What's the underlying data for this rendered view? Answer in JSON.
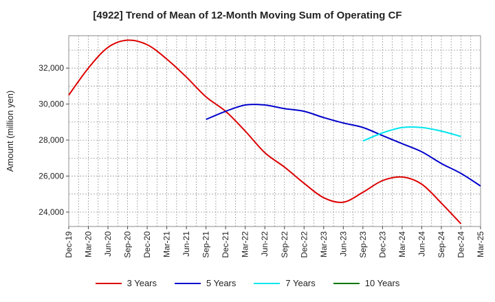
{
  "chart_data": {
    "type": "line",
    "title": "[4922]  Trend of Mean of 12-Month Moving Sum of Operating CF",
    "xlabel": "",
    "ylabel": "Amount (million yen)",
    "ylim": [
      23200,
      33800
    ],
    "yticks": [
      24000,
      26000,
      28000,
      30000,
      32000
    ],
    "ytick_labels": [
      "24,000",
      "26,000",
      "28,000",
      "30,000",
      "32,000"
    ],
    "x_categories": [
      "Dec-19",
      "Mar-20",
      "Jun-20",
      "Sep-20",
      "Dec-20",
      "Mar-21",
      "Jun-21",
      "Sep-21",
      "Dec-21",
      "Mar-22",
      "Jun-22",
      "Sep-22",
      "Dec-22",
      "Mar-23",
      "Jun-23",
      "Sep-23",
      "Dec-23",
      "Mar-24",
      "Jun-24",
      "Sep-24",
      "Dec-24",
      "Mar-25"
    ],
    "grid": true,
    "series": [
      {
        "name": "3 Years",
        "color": "#dd0000",
        "start_index": 0,
        "values": [
          30500,
          32000,
          33150,
          33550,
          33300,
          32500,
          31500,
          30400,
          29600,
          28500,
          27300,
          26500,
          25600,
          24800,
          24550,
          25100,
          25750,
          25950,
          25550,
          24500,
          23350
        ]
      },
      {
        "name": "5 Years",
        "color": "#0000cc",
        "start_index": 7,
        "values": [
          29150,
          29600,
          29950,
          29950,
          29750,
          29600,
          29250,
          28950,
          28700,
          28250,
          27800,
          27350,
          26700,
          26150,
          25450
        ]
      },
      {
        "name": "7 Years",
        "color": "#00e5ee",
        "start_index": 15,
        "values": [
          27950,
          28400,
          28700,
          28700,
          28500,
          28200
        ]
      },
      {
        "name": "10 Years",
        "color": "#007700",
        "start_index": 0,
        "values": []
      }
    ]
  }
}
